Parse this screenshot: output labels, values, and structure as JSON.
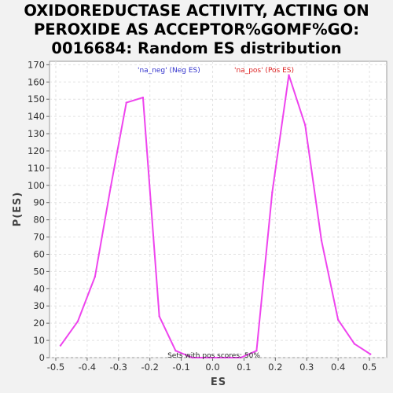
{
  "chart_data": {
    "type": "line",
    "title_lines": [
      "OXIDOREDUCTASE ACTIVITY, ACTING ON",
      "PEROXIDE AS ACCEPTOR%GOMF%GO:",
      "0016684: Random ES distribution"
    ],
    "xlabel": "ES",
    "ylabel": "P(ES)",
    "xlim": [
      -0.52,
      0.555
    ],
    "ylim": [
      0,
      172
    ],
    "x_ticks": [
      "-0.5",
      "-0.4",
      "-0.3",
      "-0.2",
      "-0.1",
      "0.0",
      "0.1",
      "0.2",
      "0.3",
      "0.4",
      "0.5"
    ],
    "y_ticks": [
      "0",
      "10",
      "20",
      "30",
      "40",
      "50",
      "60",
      "70",
      "80",
      "90",
      "100",
      "110",
      "120",
      "130",
      "140",
      "150",
      "160",
      "170"
    ],
    "grid": true,
    "legend": [
      {
        "label": "'na_neg' (Neg ES)",
        "color": "#3333cc"
      },
      {
        "label": "'na_pos' (Pos ES)",
        "color": "#dd2222"
      }
    ],
    "annotation": "Sets with pos scores: 50%",
    "series": [
      {
        "color": "#ee44ee",
        "x": [
          -0.485,
          -0.43,
          -0.375,
          -0.325,
          -0.275,
          -0.222,
          -0.17,
          -0.118,
          -0.065,
          -0.01,
          0.04,
          0.09,
          0.14,
          0.19,
          0.243,
          0.295,
          0.347,
          0.4,
          0.452,
          0.503
        ],
        "y": [
          7,
          21,
          47,
          99,
          148,
          151,
          24,
          4,
          0,
          0,
          0,
          0,
          4,
          96,
          164,
          135,
          68,
          22,
          8,
          2
        ]
      }
    ]
  }
}
